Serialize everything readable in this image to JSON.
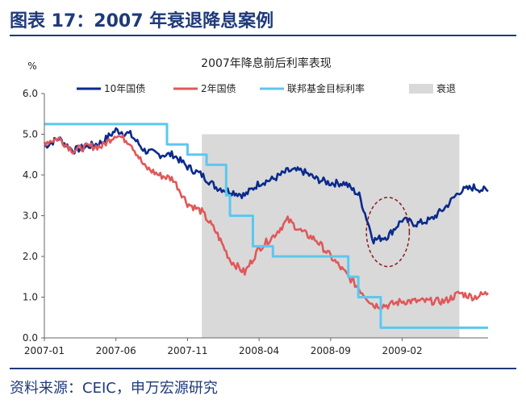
{
  "figure": {
    "title": "图表 17：2007 年衰退降息案例",
    "source": "资料来源：CEIC，申万宏源研究"
  },
  "colors": {
    "ten_year": "#0a2a8c",
    "two_year": "#e0585a",
    "fed_rate": "#5bc8ee",
    "recession": "#d9d9d9",
    "annotation": "#8b1a1a",
    "rule": "#1f3a7a"
  },
  "chart_data": {
    "type": "line",
    "title": "2007年降息前后利率表现",
    "ylabel": "%",
    "xlabel": "",
    "ylim": [
      0,
      6
    ],
    "yticks": [
      "0.0",
      "1.0",
      "2.0",
      "3.0",
      "4.0",
      "5.0",
      "6.0"
    ],
    "xlim": [
      "2007-01",
      "2009-08"
    ],
    "xticks": [
      "2007-01",
      "2007-06",
      "2007-11",
      "2008-04",
      "2008-09",
      "2009-02"
    ],
    "legend_position": "top",
    "grid": false,
    "recession": {
      "name": "衰退",
      "start": "2007-12",
      "end": "2009-06",
      "top": 5.0
    },
    "annotation": {
      "shape": "dashed-ellipse",
      "center_x": "2009-01-01",
      "center_y": 2.6,
      "radius_months": 1.5,
      "radius_y": 0.85
    },
    "series": [
      {
        "name": "10年国债",
        "key": "ten_year",
        "x": [
          "2007-01",
          "2007-02",
          "2007-03",
          "2007-04",
          "2007-05",
          "2007-06",
          "2007-07",
          "2007-08",
          "2007-09",
          "2007-10",
          "2007-11",
          "2007-12",
          "2008-01",
          "2008-02",
          "2008-03",
          "2008-04",
          "2008-05",
          "2008-06",
          "2008-07",
          "2008-08",
          "2008-09",
          "2008-10",
          "2008-11",
          "2008-12",
          "2009-01",
          "2009-02",
          "2009-03",
          "2009-04",
          "2009-05",
          "2009-06",
          "2009-07",
          "2009-08"
        ],
        "values": [
          4.7,
          4.9,
          4.6,
          4.7,
          4.8,
          5.1,
          5.0,
          4.6,
          4.5,
          4.5,
          4.2,
          4.0,
          3.7,
          3.6,
          3.5,
          3.8,
          3.9,
          4.1,
          4.1,
          3.9,
          3.8,
          3.8,
          3.5,
          2.4,
          2.5,
          2.9,
          2.8,
          2.9,
          3.2,
          3.6,
          3.7,
          3.6
        ]
      },
      {
        "name": "2年国债",
        "key": "two_year",
        "x": [
          "2007-01",
          "2007-02",
          "2007-03",
          "2007-04",
          "2007-05",
          "2007-06",
          "2007-07",
          "2007-08",
          "2007-09",
          "2007-10",
          "2007-11",
          "2007-12",
          "2008-01",
          "2008-02",
          "2008-03",
          "2008-04",
          "2008-05",
          "2008-06",
          "2008-07",
          "2008-08",
          "2008-09",
          "2008-10",
          "2008-11",
          "2008-12",
          "2009-01",
          "2009-02",
          "2009-03",
          "2009-04",
          "2009-05",
          "2009-06",
          "2009-07",
          "2009-08"
        ],
        "values": [
          4.8,
          4.9,
          4.6,
          4.7,
          4.7,
          5.0,
          4.8,
          4.2,
          4.0,
          3.9,
          3.3,
          3.1,
          2.6,
          1.9,
          1.6,
          2.2,
          2.5,
          2.9,
          2.6,
          2.4,
          2.0,
          1.6,
          1.2,
          0.8,
          0.8,
          0.9,
          0.9,
          0.9,
          0.9,
          1.1,
          1.0,
          1.1
        ]
      },
      {
        "name": "联邦基金目标利率",
        "key": "fed_rate",
        "step": true,
        "x": [
          "2007-01",
          "2007-09-18",
          "2007-10-31",
          "2007-12-11",
          "2008-01-22",
          "2008-01-30",
          "2008-03-18",
          "2008-04-30",
          "2008-10-08",
          "2008-10-29",
          "2008-12-16",
          "2009-08"
        ],
        "values": [
          5.25,
          4.75,
          4.5,
          4.25,
          3.5,
          3.0,
          2.25,
          2.0,
          1.5,
          1.0,
          0.25,
          0.25
        ]
      },
      {
        "name": "衰退",
        "key": "recession"
      }
    ]
  }
}
